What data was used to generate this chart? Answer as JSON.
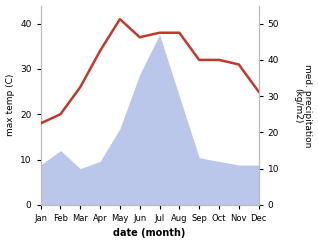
{
  "months": [
    "Jan",
    "Feb",
    "Mar",
    "Apr",
    "May",
    "Jun",
    "Jul",
    "Aug",
    "Sep",
    "Oct",
    "Nov",
    "Dec"
  ],
  "temperature": [
    18,
    20,
    26,
    34,
    41,
    37,
    38,
    38,
    32,
    32,
    31,
    25
  ],
  "precipitation": [
    11,
    15,
    10,
    12,
    21,
    36,
    47,
    30,
    13,
    12,
    11,
    11
  ],
  "temp_color": "#c0392b",
  "precip_color": "#b0bce8",
  "ylabel_left": "max temp (C)",
  "ylabel_right": "med. precipitation\n(kg/m2)",
  "xlabel": "date (month)",
  "ylim_left": [
    0,
    44
  ],
  "ylim_right": [
    0,
    55
  ],
  "yticks_left": [
    0,
    10,
    20,
    30,
    40
  ],
  "yticks_right": [
    0,
    10,
    20,
    30,
    40,
    50
  ],
  "background_color": "#ffffff",
  "figsize": [
    3.18,
    2.44
  ],
  "dpi": 100
}
